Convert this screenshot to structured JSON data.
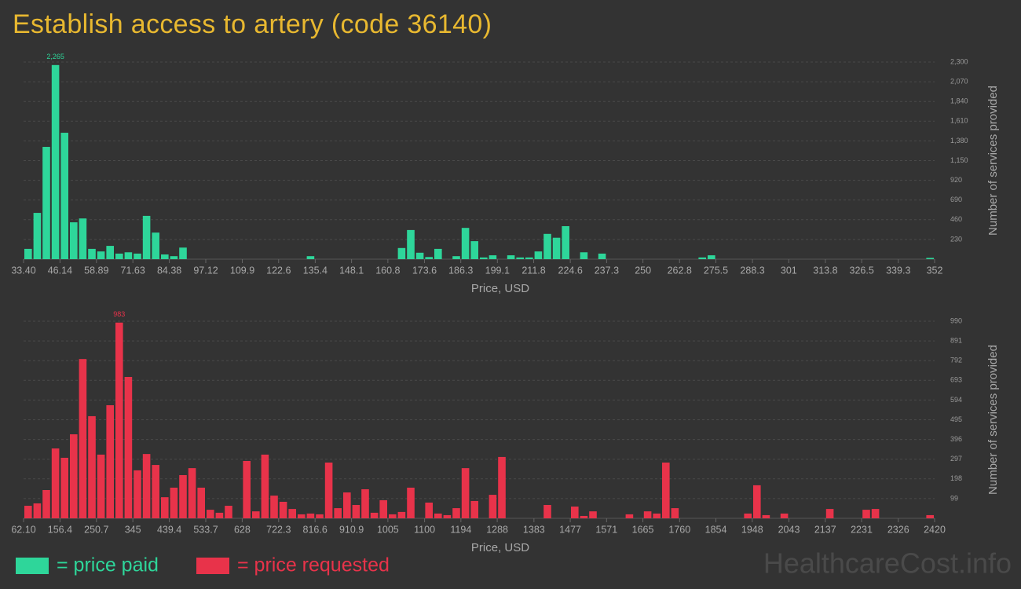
{
  "header": {
    "title": "Establish access to artery (code 36140)"
  },
  "chart_data": [
    {
      "type": "histogram",
      "color": "#2ed69a",
      "grid": true,
      "label_max": true,
      "xlabel": "Price, USD",
      "ylabel": "Number of services provided",
      "xlim": [
        33.4,
        352
      ],
      "ylim": [
        0,
        2300
      ],
      "xticks": [
        {
          "value": 33.4,
          "label": "33.40"
        },
        46.14,
        58.89,
        71.63,
        84.38,
        97.12,
        109.9,
        122.6,
        135.4,
        148.1,
        160.8,
        173.6,
        186.3,
        199.1,
        211.8,
        224.6,
        237.3,
        250,
        262.8,
        275.5,
        288.3,
        301,
        313.8,
        326.5,
        339.3,
        352
      ],
      "yticks": [
        230,
        460,
        690,
        920,
        {
          "value": 1150,
          "label": "1,150"
        },
        {
          "value": 1380,
          "label": "1,380"
        },
        {
          "value": 1610,
          "label": "1,610"
        },
        {
          "value": 1840,
          "label": "1,840"
        },
        {
          "value": 2070,
          "label": "2,070"
        },
        {
          "value": 2300,
          "label": "2,300"
        }
      ],
      "bins": [
        33.4,
        36.59,
        39.77,
        42.96,
        46.14,
        49.33,
        52.52,
        55.7,
        58.89,
        62.07,
        65.26,
        68.45,
        71.63,
        74.82,
        78.0,
        81.19,
        84.38,
        87.56,
        90.75,
        93.93,
        97.12,
        100.31,
        103.49,
        106.68,
        109.86,
        113.05,
        116.24,
        119.42,
        122.61,
        125.79,
        128.98,
        132.17,
        135.35,
        138.54,
        141.72,
        144.91,
        148.1,
        151.28,
        154.47,
        157.65,
        160.84,
        164.03,
        167.21,
        170.4,
        173.58,
        176.77,
        179.96,
        183.14,
        186.33,
        189.51,
        192.7,
        195.89,
        199.07,
        202.26,
        205.44,
        208.63,
        211.82,
        215.0,
        218.19,
        221.37,
        224.56,
        227.75,
        230.93,
        234.12,
        237.3,
        240.49,
        243.68,
        246.86,
        250.05,
        253.23,
        256.42,
        259.61,
        262.79,
        265.98,
        269.16,
        272.35,
        275.54,
        278.72,
        281.91,
        285.09,
        288.28,
        291.47,
        294.65,
        297.84,
        301.02,
        304.21,
        307.4,
        310.58,
        313.77,
        316.95,
        320.14,
        323.33,
        326.51,
        329.7,
        332.88,
        336.07,
        339.26,
        342.44,
        345.63,
        348.81,
        352.0
      ],
      "values": [
        120,
        540,
        1310,
        2265,
        1475,
        430,
        475,
        120,
        90,
        155,
        65,
        80,
        65,
        505,
        310,
        55,
        35,
        135,
        0,
        0,
        0,
        0,
        0,
        0,
        0,
        0,
        0,
        0,
        0,
        0,
        0,
        35,
        0,
        0,
        0,
        0,
        0,
        0,
        0,
        0,
        0,
        130,
        340,
        75,
        25,
        120,
        0,
        35,
        365,
        210,
        20,
        45,
        0,
        45,
        20,
        20,
        90,
        295,
        250,
        385,
        0,
        80,
        0,
        65,
        0,
        0,
        0,
        0,
        0,
        0,
        0,
        0,
        0,
        0,
        20,
        45,
        0,
        0,
        0,
        0,
        0,
        0,
        0,
        0,
        0,
        0,
        0,
        0,
        0,
        0,
        0,
        0,
        0,
        0,
        0,
        0,
        0,
        0,
        0,
        15
      ],
      "value_labels": [
        null,
        null,
        null,
        "2,265",
        null,
        null,
        null,
        null,
        null,
        null,
        null,
        null,
        null,
        null,
        null,
        null,
        null,
        null,
        null,
        null,
        null,
        null,
        null,
        null,
        null,
        null,
        null,
        null,
        null,
        null,
        null,
        null,
        null,
        null,
        null,
        null,
        null,
        null,
        null,
        null,
        null,
        null,
        null,
        null,
        null,
        null,
        null,
        null,
        null,
        null,
        null,
        null,
        null,
        null,
        null,
        null,
        null,
        null,
        null,
        null,
        null,
        null,
        null,
        null,
        null,
        null,
        null,
        null,
        null,
        null,
        null,
        null,
        null,
        null,
        null,
        null,
        null,
        null,
        null,
        null,
        null,
        null,
        null,
        null,
        null,
        null,
        null,
        null,
        null,
        null,
        null,
        null,
        null,
        null,
        null,
        null,
        null,
        null,
        null,
        null
      ]
    },
    {
      "type": "histogram",
      "color": "#e8334a",
      "grid": true,
      "label_max": true,
      "xlabel": "Price, USD",
      "ylabel": "Number of services provided",
      "xlim": [
        62.1,
        2420
      ],
      "ylim": [
        0,
        990
      ],
      "xticks": [
        {
          "value": 62.1,
          "label": "62.10"
        },
        156.4,
        250.7,
        345,
        439.4,
        533.7,
        628,
        722.3,
        816.6,
        910.9,
        1005,
        1100,
        1194,
        1288,
        1383,
        1477,
        1571,
        1665,
        1760,
        1854,
        1948,
        2043,
        2137,
        2231,
        2326,
        2420
      ],
      "yticks": [
        99,
        198,
        297,
        396,
        495,
        594,
        693,
        792,
        891,
        990
      ],
      "bins": [
        62.1,
        85.68,
        109.26,
        132.84,
        156.42,
        180.0,
        203.57,
        227.15,
        250.73,
        274.31,
        297.89,
        321.47,
        345.05,
        368.63,
        392.21,
        415.79,
        439.36,
        462.94,
        486.52,
        510.1,
        533.68,
        557.26,
        580.84,
        604.42,
        628.0,
        651.58,
        675.15,
        698.73,
        722.31,
        745.89,
        769.47,
        793.05,
        816.63,
        840.21,
        863.79,
        887.37,
        910.94,
        934.52,
        958.1,
        981.68,
        1005.26,
        1028.84,
        1052.42,
        1076.0,
        1099.58,
        1123.16,
        1146.73,
        1170.31,
        1193.89,
        1217.47,
        1241.05,
        1264.63,
        1288.21,
        1311.79,
        1335.37,
        1358.95,
        1382.52,
        1406.1,
        1429.68,
        1453.26,
        1476.84,
        1500.42,
        1524.0,
        1547.58,
        1571.16,
        1594.74,
        1618.31,
        1641.89,
        1665.47,
        1689.05,
        1712.63,
        1736.21,
        1759.79,
        1783.37,
        1806.95,
        1830.53,
        1854.1,
        1877.68,
        1901.26,
        1924.84,
        1948.42,
        1972.0,
        1995.58,
        2019.16,
        2042.74,
        2066.32,
        2089.89,
        2113.47,
        2137.05,
        2160.63,
        2184.21,
        2207.79,
        2231.37,
        2254.95,
        2278.53,
        2302.11,
        2325.68,
        2349.26,
        2372.84,
        2396.42,
        2420.0
      ],
      "values": [
        63,
        75,
        142,
        351,
        304,
        422,
        800,
        513,
        320,
        568,
        983,
        710,
        241,
        323,
        268,
        106,
        154,
        217,
        252,
        154,
        43,
        28,
        63,
        0,
        288,
        35,
        320,
        114,
        83,
        47,
        20,
        24,
        20,
        280,
        51,
        130,
        67,
        146,
        28,
        91,
        20,
        32,
        154,
        0,
        79,
        24,
        16,
        51,
        252,
        87,
        0,
        118,
        308,
        0,
        0,
        0,
        0,
        67,
        0,
        0,
        59,
        12,
        35,
        0,
        0,
        0,
        20,
        0,
        35,
        24,
        280,
        51,
        0,
        0,
        0,
        0,
        0,
        0,
        0,
        24,
        166,
        16,
        0,
        24,
        0,
        0,
        0,
        0,
        47,
        0,
        0,
        0,
        43,
        47,
        0,
        0,
        0,
        0,
        0,
        16
      ]
    }
  ],
  "legend": [
    {
      "label": "= price paid",
      "color": "#2ed69a"
    },
    {
      "label": "= price requested",
      "color": "#e8334a"
    }
  ],
  "watermark": "HealthcareCost.info"
}
